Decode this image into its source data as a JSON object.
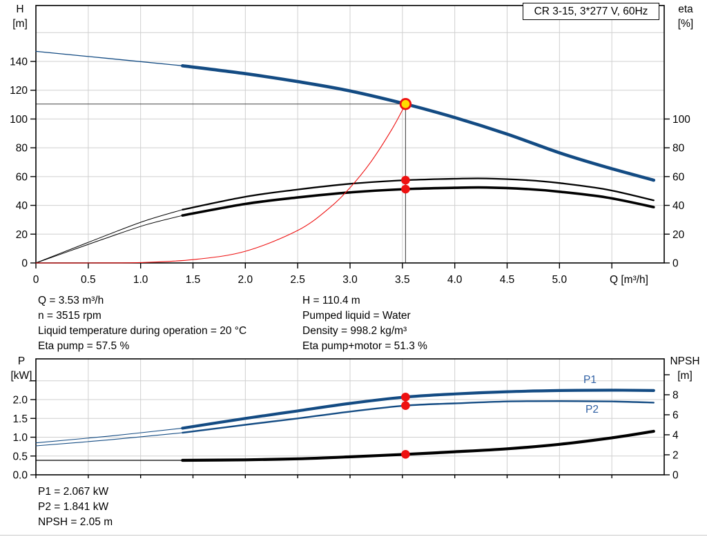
{
  "title_box": "CR 3-15, 3*277 V, 60Hz",
  "colors": {
    "curve_blue": "#134B83",
    "curve_black": "#000000",
    "curve_red": "#EE1111",
    "dot_red": "#EE1111",
    "op_point_fill": "#FFDE00",
    "op_point_ring": "#EE1111",
    "grid": "#CFCFCF",
    "frame": "#000000",
    "marker_line": "#444444",
    "label_blue": "#2E5FA3"
  },
  "annotations": {
    "top_left": [
      "Q = 3.53 m³/h",
      "n = 3515 rpm",
      "Liquid temperature during operation = 20 °C",
      "Eta pump = 57.5 %"
    ],
    "top_right": [
      "H = 110.4 m",
      "Pumped liquid = Water",
      "Density = 998.2 kg/m³",
      "Eta pump+motor = 51.3 %"
    ],
    "bottom": [
      "P1 = 2.067 kW",
      "P2 = 1.841 kW",
      "NPSH = 2.05 m"
    ]
  },
  "chart_data": [
    {
      "type": "line",
      "name": "qh-eta-chart",
      "title": "CR 3-15, 3*277 V, 60Hz",
      "x_axis": {
        "label": "Q [m³/h]",
        "min": 0,
        "max": 6,
        "tick_values": [
          0,
          0.5,
          1,
          1.5,
          2,
          2.5,
          3,
          3.5,
          4,
          4.5,
          5,
          5.5
        ],
        "tick_labels": [
          "0",
          "0.5",
          "1.0",
          "1.5",
          "2.0",
          "2.5",
          "3.0",
          "3.5",
          "4.0",
          "4.5",
          "5.0",
          ""
        ]
      },
      "y_left": {
        "label_line1": "H",
        "label_line2": "[m]",
        "min": 0,
        "max": 179,
        "tick_values": [
          0,
          20,
          40,
          60,
          80,
          100,
          120,
          140
        ],
        "tick_labels": [
          "0",
          "20",
          "40",
          "60",
          "80",
          "100",
          "120",
          "140"
        ],
        "grid_values": [
          20,
          40,
          60,
          80,
          100,
          120,
          140,
          160
        ]
      },
      "y_right": {
        "label_line1": "eta",
        "label_line2": "[%]",
        "min": 0,
        "max": 179,
        "tick_values": [
          0,
          20,
          40,
          60,
          80,
          100
        ],
        "tick_labels": [
          "0",
          "20",
          "40",
          "60",
          "80",
          "100"
        ]
      },
      "series": [
        {
          "name": "head-curve",
          "axis": "left",
          "unit": "m",
          "color_key": "curve_blue",
          "split": 1.4,
          "thin": 1.3,
          "thick": 4.6,
          "points": [
            [
              0,
              147
            ],
            [
              0.7,
              142
            ],
            [
              1.4,
              137
            ],
            [
              2,
              131.5
            ],
            [
              2.5,
              126
            ],
            [
              3,
              119.5
            ],
            [
              3.53,
              110.4
            ],
            [
              4,
              101
            ],
            [
              4.5,
              89.5
            ],
            [
              5,
              76.5
            ],
            [
              5.45,
              66.5
            ],
            [
              5.9,
              57.5
            ]
          ]
        },
        {
          "name": "eta-pump-curve",
          "axis": "right",
          "unit": "%",
          "color_key": "curve_black",
          "split": 1.4,
          "thin": 1,
          "thick": 2.3,
          "points": [
            [
              0,
              0
            ],
            [
              0.35,
              10
            ],
            [
              0.7,
              20
            ],
            [
              1.05,
              29.5
            ],
            [
              1.4,
              37
            ],
            [
              2,
              46
            ],
            [
              2.5,
              51
            ],
            [
              3,
              55
            ],
            [
              3.53,
              57.5
            ],
            [
              4,
              58.5
            ],
            [
              4.3,
              58.7
            ],
            [
              4.7,
              57.5
            ],
            [
              5,
              55.5
            ],
            [
              5.45,
              51
            ],
            [
              5.9,
              43.5
            ]
          ]
        },
        {
          "name": "eta-pump-motor-curve",
          "axis": "right",
          "unit": "%",
          "color_key": "curve_black",
          "split": 1.4,
          "thin": 1,
          "thick": 3.6,
          "points": [
            [
              0,
              0
            ],
            [
              0.35,
              9
            ],
            [
              0.7,
              18
            ],
            [
              1.05,
              26.5
            ],
            [
              1.4,
              33
            ],
            [
              2,
              41
            ],
            [
              2.5,
              45.5
            ],
            [
              3,
              49
            ],
            [
              3.53,
              51.3
            ],
            [
              4,
              52.2
            ],
            [
              4.3,
              52.4
            ],
            [
              4.7,
              51.3
            ],
            [
              5,
              49.5
            ],
            [
              5.45,
              45.5
            ],
            [
              5.9,
              38.8
            ]
          ]
        },
        {
          "name": "duty-curve",
          "axis": "left",
          "unit": "m",
          "color_key": "curve_red",
          "thin": 1.1,
          "points": [
            [
              0,
              0
            ],
            [
              0.5,
              0.02
            ],
            [
              1,
              0.3
            ],
            [
              1.5,
              2.3
            ],
            [
              2,
              8.1
            ],
            [
              2.5,
              22.6
            ],
            [
              2.8,
              38
            ],
            [
              3,
              52.3
            ],
            [
              3.2,
              70.3
            ],
            [
              3.4,
              92.9
            ],
            [
              3.53,
              110.4
            ]
          ]
        }
      ],
      "operating_point": {
        "q": 3.53,
        "h": 110.4
      },
      "marker_dots": [
        {
          "q": 3.53,
          "value": 57.5,
          "axis": "right"
        },
        {
          "q": 3.53,
          "value": 51.3,
          "axis": "right"
        }
      ],
      "marker_lines": {
        "h_line": 110.4,
        "v_line": 3.53
      }
    },
    {
      "type": "line",
      "name": "power-npsh-chart",
      "x_axis": {
        "min": 0,
        "max": 6,
        "tick_values": [
          0,
          0.5,
          1,
          1.5,
          2,
          2.5,
          3,
          3.5,
          4,
          4.5,
          5,
          5.5
        ]
      },
      "y_left": {
        "label_line1": "P",
        "label_line2": "[kW]",
        "min": 0,
        "max": 3.1,
        "tick_values": [
          0,
          0.5,
          1,
          1.5,
          2,
          2.5
        ],
        "tick_labels": [
          "0.0",
          "0.5",
          "1.0",
          "1.5",
          "2.0",
          ""
        ],
        "grid_values": [
          0.5,
          1,
          1.5,
          2,
          2.5
        ]
      },
      "y_right": {
        "label_line1": "NPSH",
        "label_line2": "[m]",
        "min": 0,
        "max": 11.6,
        "tick_values": [
          0,
          2,
          4,
          6,
          8,
          10
        ],
        "tick_labels": [
          "0",
          "2",
          "4",
          "6",
          "8",
          ""
        ]
      },
      "series": [
        {
          "name": "p1-curve",
          "label": "P1",
          "axis": "left",
          "unit": "kW",
          "color_key": "curve_blue",
          "split": 1.4,
          "thin": 1.1,
          "thick": 4.2,
          "points": [
            [
              0,
              0.85
            ],
            [
              0.7,
              1.03
            ],
            [
              1.4,
              1.24
            ],
            [
              2,
              1.5
            ],
            [
              2.5,
              1.7
            ],
            [
              3,
              1.9
            ],
            [
              3.53,
              2.067
            ],
            [
              4,
              2.15
            ],
            [
              4.5,
              2.21
            ],
            [
              5,
              2.24
            ],
            [
              5.5,
              2.25
            ],
            [
              5.9,
              2.24
            ]
          ]
        },
        {
          "name": "p2-curve",
          "label": "P2",
          "axis": "left",
          "unit": "kW",
          "color_key": "curve_blue",
          "split": 1.4,
          "thin": 1.1,
          "thick": 2.4,
          "points": [
            [
              0,
              0.77
            ],
            [
              0.7,
              0.93
            ],
            [
              1.4,
              1.12
            ],
            [
              2,
              1.33
            ],
            [
              2.5,
              1.5
            ],
            [
              3,
              1.68
            ],
            [
              3.53,
              1.841
            ],
            [
              4,
              1.9
            ],
            [
              4.5,
              1.95
            ],
            [
              5,
              1.96
            ],
            [
              5.5,
              1.95
            ],
            [
              5.9,
              1.92
            ]
          ]
        },
        {
          "name": "npsh-curve",
          "axis": "right",
          "unit": "m",
          "color_key": "curve_black",
          "split": 1.4,
          "thin": 1.2,
          "thick": 4.2,
          "points": [
            [
              0,
              1.45
            ],
            [
              0.7,
              1.45
            ],
            [
              1.4,
              1.45
            ],
            [
              2,
              1.5
            ],
            [
              2.5,
              1.6
            ],
            [
              3,
              1.8
            ],
            [
              3.53,
              2.05
            ],
            [
              4,
              2.3
            ],
            [
              4.5,
              2.6
            ],
            [
              5,
              3.05
            ],
            [
              5.5,
              3.7
            ],
            [
              5.9,
              4.35
            ]
          ]
        }
      ],
      "marker_dots": [
        {
          "q": 3.53,
          "value": 2.067,
          "axis": "left"
        },
        {
          "q": 3.53,
          "value": 1.841,
          "axis": "left"
        },
        {
          "q": 3.53,
          "value": 2.05,
          "axis": "right"
        }
      ]
    }
  ]
}
